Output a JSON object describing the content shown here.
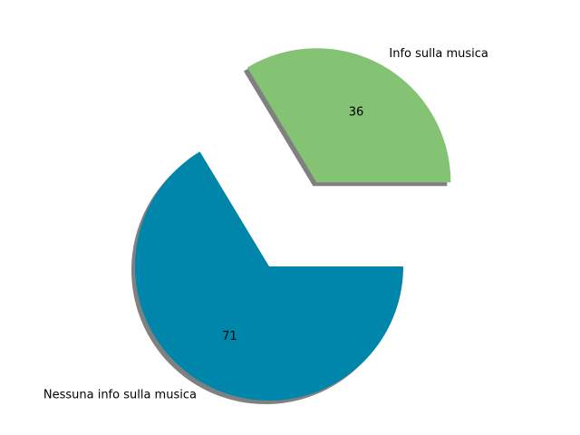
{
  "chart_data": {
    "type": "pie",
    "title": "",
    "slices": [
      {
        "label": "Info sulla musica",
        "value": 36,
        "value_label": "36",
        "color": "#84c373",
        "exploded": true
      },
      {
        "label": "Nessuna info sulla musica",
        "value": 71,
        "value_label": "71",
        "color": "#0086aa",
        "exploded": false
      }
    ],
    "start_angle_deg": 0,
    "direction": "counterclockwise",
    "shadow": true,
    "shadow_color": "#808080",
    "legend": false
  }
}
